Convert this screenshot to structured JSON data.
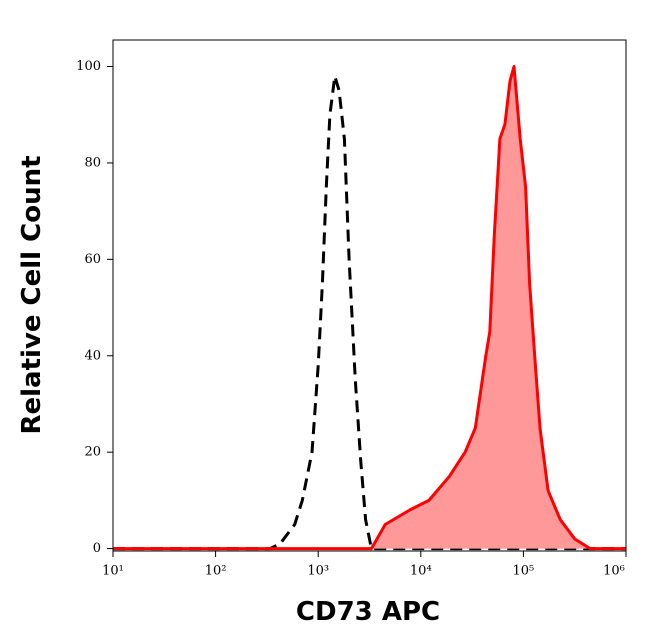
{
  "chart_data": {
    "type": "histogram-overlay",
    "x_label": "CD73 APC",
    "y_label": "Relative Cell Count",
    "xscale": "log",
    "xlim": [
      10,
      1000000
    ],
    "ylim": [
      -0.5,
      105.5
    ],
    "xticks": [
      {
        "value": 10,
        "label": "10¹"
      },
      {
        "value": 100,
        "label": "10²"
      },
      {
        "value": 1000,
        "label": "10³"
      },
      {
        "value": 10000,
        "label": "10⁴"
      },
      {
        "value": 100000,
        "label": "10⁵"
      },
      {
        "value": 1000000,
        "label": "10⁶"
      }
    ],
    "yticks": [
      0,
      20,
      40,
      60,
      80,
      100
    ],
    "series": [
      {
        "color": "#000000",
        "line_style": "dashed",
        "x": [
          10,
          340,
          425,
          590,
          700,
          870,
          1000,
          1100,
          1200,
          1300,
          1450,
          1600,
          1800,
          2000,
          2300,
          2600,
          2900,
          3300,
          1000000
        ],
        "values": [
          0,
          0,
          1,
          5,
          10,
          20,
          38,
          55,
          75,
          90,
          98,
          95,
          85,
          60,
          35,
          18,
          6,
          0,
          0
        ]
      },
      {
        "color": "#ff0000",
        "fill": "#ff9999",
        "line_style": "solid",
        "x": [
          10,
          3000,
          3300,
          4500,
          7800,
          12000,
          19000,
          27000,
          34000,
          43000,
          47000,
          52000,
          59000,
          66000,
          74000,
          81000,
          93000,
          105000,
          115000,
          129000,
          145000,
          174000,
          229000,
          316000,
          447000,
          1000000
        ],
        "values": [
          0,
          0,
          0,
          5,
          8,
          10,
          15,
          20,
          25,
          40,
          45,
          65,
          85,
          88,
          97,
          100,
          85,
          75,
          55,
          40,
          25,
          12,
          6,
          2,
          0,
          0
        ]
      }
    ]
  }
}
